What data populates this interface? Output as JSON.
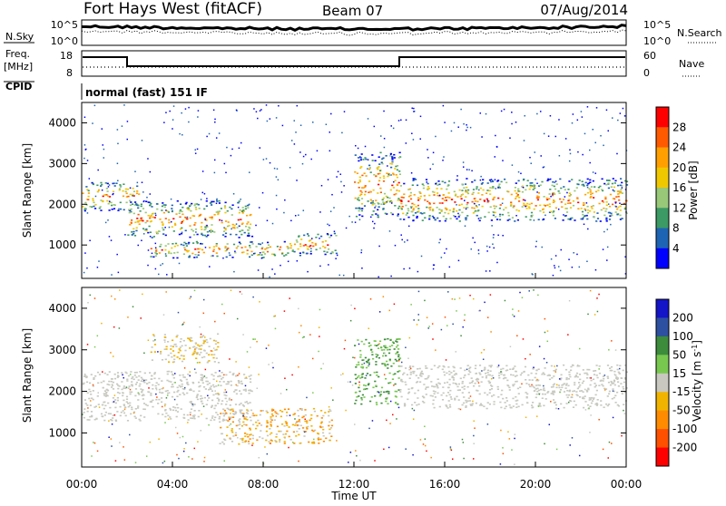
{
  "header": {
    "station": "Fort Hays West (fitACF)",
    "beam": "Beam 07",
    "date": "07/Aug/2014"
  },
  "nsky_panel": {
    "label_left": "N.Sky",
    "label_right": "N.Search",
    "tick_left_top": "10^5",
    "tick_left_bottom": "10^0",
    "tick_right_top": "10^5",
    "tick_right_bottom": "10^0"
  },
  "freq_panel": {
    "label_left_line1": "Freq.",
    "label_left_line2": "[MHz]",
    "label_right": "Nave",
    "left_ticks": [
      "18",
      "8"
    ],
    "right_ticks": [
      "60",
      "0"
    ]
  },
  "cpid": {
    "label": "CPID",
    "value": "normal (fast) 151 IF"
  },
  "axes": {
    "xlabel": "Time UT",
    "xticks": [
      "00:00",
      "04:00",
      "08:00",
      "12:00",
      "16:00",
      "20:00",
      "00:00"
    ],
    "ylabel": "Slant Range [km]",
    "yticks": [
      "4000",
      "3000",
      "2000",
      "1000"
    ]
  },
  "power_colorbar": {
    "label": "Power [dB]",
    "ticks": [
      "28",
      "24",
      "20",
      "16",
      "12",
      "8",
      "4"
    ],
    "colors": [
      "#ff0000",
      "#ff5a00",
      "#ffa000",
      "#f0c800",
      "#98c878",
      "#3c9a64",
      "#1e64b4",
      "#0000ff"
    ]
  },
  "velocity_colorbar": {
    "label": "Velocity [m s^-1]",
    "ticks": [
      "200",
      "100",
      "50",
      "15",
      "-15",
      "-50",
      "-100",
      "-200"
    ],
    "colors": [
      "#1414c8",
      "#2d50a0",
      "#3c8c3c",
      "#78c850",
      "#c8c8c0",
      "#f0b400",
      "#ff8c00",
      "#ff5000",
      "#ff0000"
    ]
  },
  "chart_data": [
    {
      "type": "heatmap",
      "title": "Power",
      "xlabel": "Time UT",
      "ylabel": "Slant Range [km]",
      "x_range": [
        "00:00",
        "24:00"
      ],
      "ylim": [
        180,
        4500
      ],
      "colorbar_label": "Power [dB]",
      "colorbar_range": [
        0,
        32
      ],
      "scatter_regions": [
        {
          "t_start": 0.0,
          "t_end": 2.5,
          "range_lo": 1850,
          "range_hi": 2550,
          "value": "14-28 dB"
        },
        {
          "t_start": 2.0,
          "t_end": 7.5,
          "range_lo": 1200,
          "range_hi": 2100,
          "value": "12-28 dB"
        },
        {
          "t_start": 3.0,
          "t_end": 9.0,
          "range_lo": 700,
          "range_hi": 1100,
          "value": "8-24 dB"
        },
        {
          "t_start": 9.0,
          "t_end": 11.2,
          "range_lo": 750,
          "range_hi": 1300,
          "value": "8-20 dB"
        },
        {
          "t_start": 12.0,
          "t_end": 14.0,
          "range_lo": 1700,
          "range_hi": 3300,
          "value": "12-28 dB"
        },
        {
          "t_start": 14.0,
          "t_end": 24.0,
          "range_lo": 1600,
          "range_hi": 2650,
          "value": "12-28 dB"
        }
      ]
    },
    {
      "type": "heatmap",
      "title": "Velocity",
      "xlabel": "Time UT",
      "ylabel": "Slant Range [km]",
      "x_range": [
        "00:00",
        "24:00"
      ],
      "ylim": [
        180,
        4500
      ],
      "colorbar_label": "Velocity [m s^-1]",
      "colorbar_range": [
        -200,
        200
      ],
      "scatter_regions": [
        {
          "t_start": 0.0,
          "t_end": 7.5,
          "range_lo": 1300,
          "range_hi": 2500,
          "value": "-15 to 15 m/s"
        },
        {
          "t_start": 3.0,
          "t_end": 6.0,
          "range_lo": 2700,
          "range_hi": 3400,
          "value": "-50 to -15 m/s"
        },
        {
          "t_start": 6.0,
          "t_end": 11.0,
          "range_lo": 750,
          "range_hi": 1600,
          "value": "-100 to -15 m/s"
        },
        {
          "t_start": 12.0,
          "t_end": 14.0,
          "range_lo": 1700,
          "range_hi": 3300,
          "value": "15 to 50 m/s"
        },
        {
          "t_start": 14.0,
          "t_end": 24.0,
          "range_lo": 1600,
          "range_hi": 2650,
          "value": "-15 to 15 m/s"
        }
      ]
    }
  ]
}
